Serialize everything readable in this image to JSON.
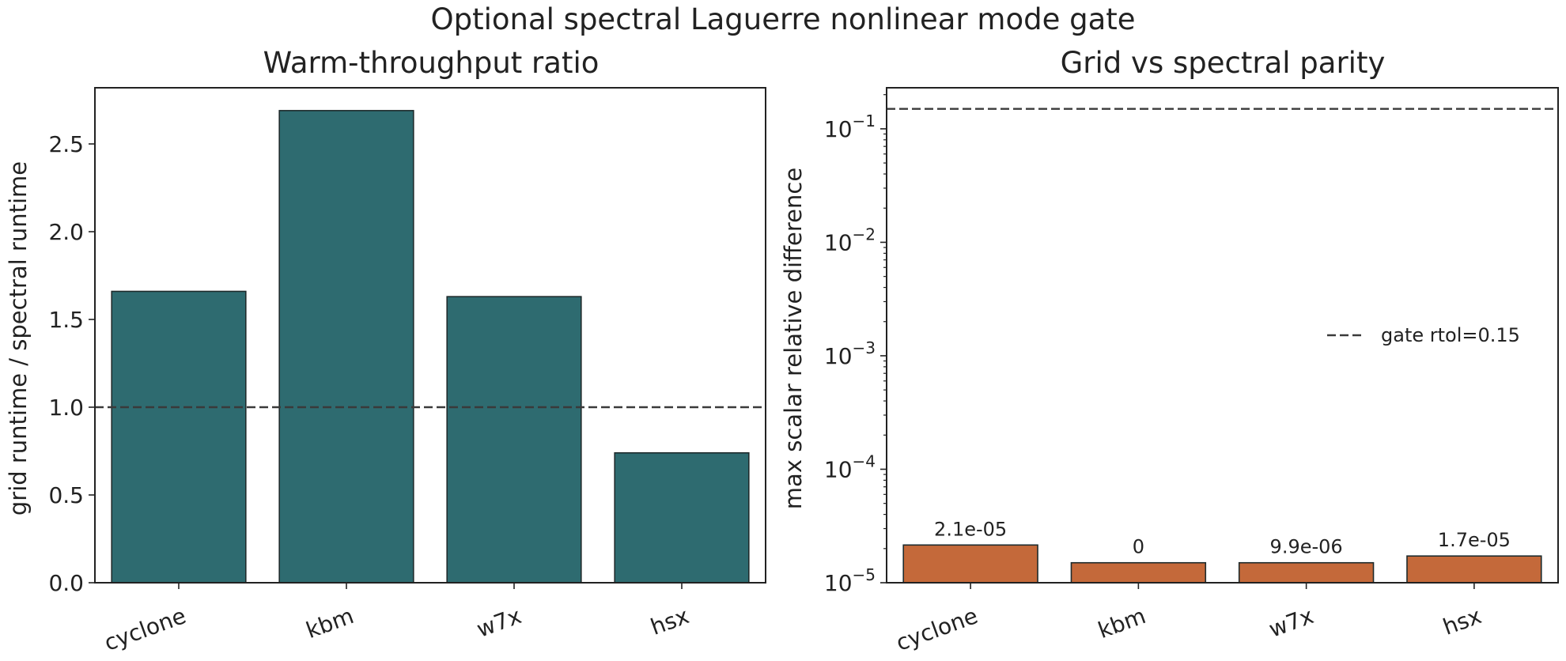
{
  "figure": {
    "title": "Optional spectral Laguerre nonlinear mode gate"
  },
  "chart_data": [
    {
      "type": "bar",
      "title": "Warm-throughput ratio",
      "xlabel": "",
      "ylabel": "grid runtime / spectral runtime",
      "categories": [
        "cyclone",
        "kbm",
        "w7x",
        "hsx"
      ],
      "values": [
        1.66,
        2.69,
        1.63,
        0.74
      ],
      "ylim": [
        0,
        2.82
      ],
      "yscale": "linear",
      "yticks": [
        0.0,
        0.5,
        1.0,
        1.5,
        2.0,
        2.5
      ],
      "ytick_labels": [
        "0.0",
        "0.5",
        "1.0",
        "1.5",
        "2.0",
        "2.5"
      ],
      "reference_line": {
        "y": 1.0,
        "style": "dashed"
      },
      "bar_color": "#2e6b70",
      "grid": false
    },
    {
      "type": "bar",
      "title": "Grid vs spectral parity",
      "xlabel": "",
      "ylabel": "max scalar relative difference",
      "categories": [
        "cyclone",
        "kbm",
        "w7x",
        "hsx"
      ],
      "values": [
        2.1e-05,
        0,
        9.9e-06,
        1.7e-05
      ],
      "display_floor": 1e-05,
      "bar_tops": [
        2.15e-05,
        1.5e-05,
        1.5e-05,
        1.72e-05
      ],
      "data_labels": [
        "2.1e-05",
        "0",
        "9.9e-06",
        "1.7e-05"
      ],
      "ylim": [
        1e-05,
        0.23
      ],
      "yscale": "log",
      "yticks": [
        1e-05,
        0.0001,
        0.001,
        0.01,
        0.1
      ],
      "ytick_labels": [
        {
          "base": "10",
          "exp": "−5"
        },
        {
          "base": "10",
          "exp": "−4"
        },
        {
          "base": "10",
          "exp": "−3"
        },
        {
          "base": "10",
          "exp": "−2"
        },
        {
          "base": "10",
          "exp": "−1"
        }
      ],
      "reference_line": {
        "y": 0.15,
        "style": "dashed",
        "label": "gate rtol=0.15"
      },
      "legend": {
        "placement": "center-right",
        "entries": [
          "gate rtol=0.15"
        ]
      },
      "bar_color": "#c4693a",
      "grid": false
    }
  ]
}
